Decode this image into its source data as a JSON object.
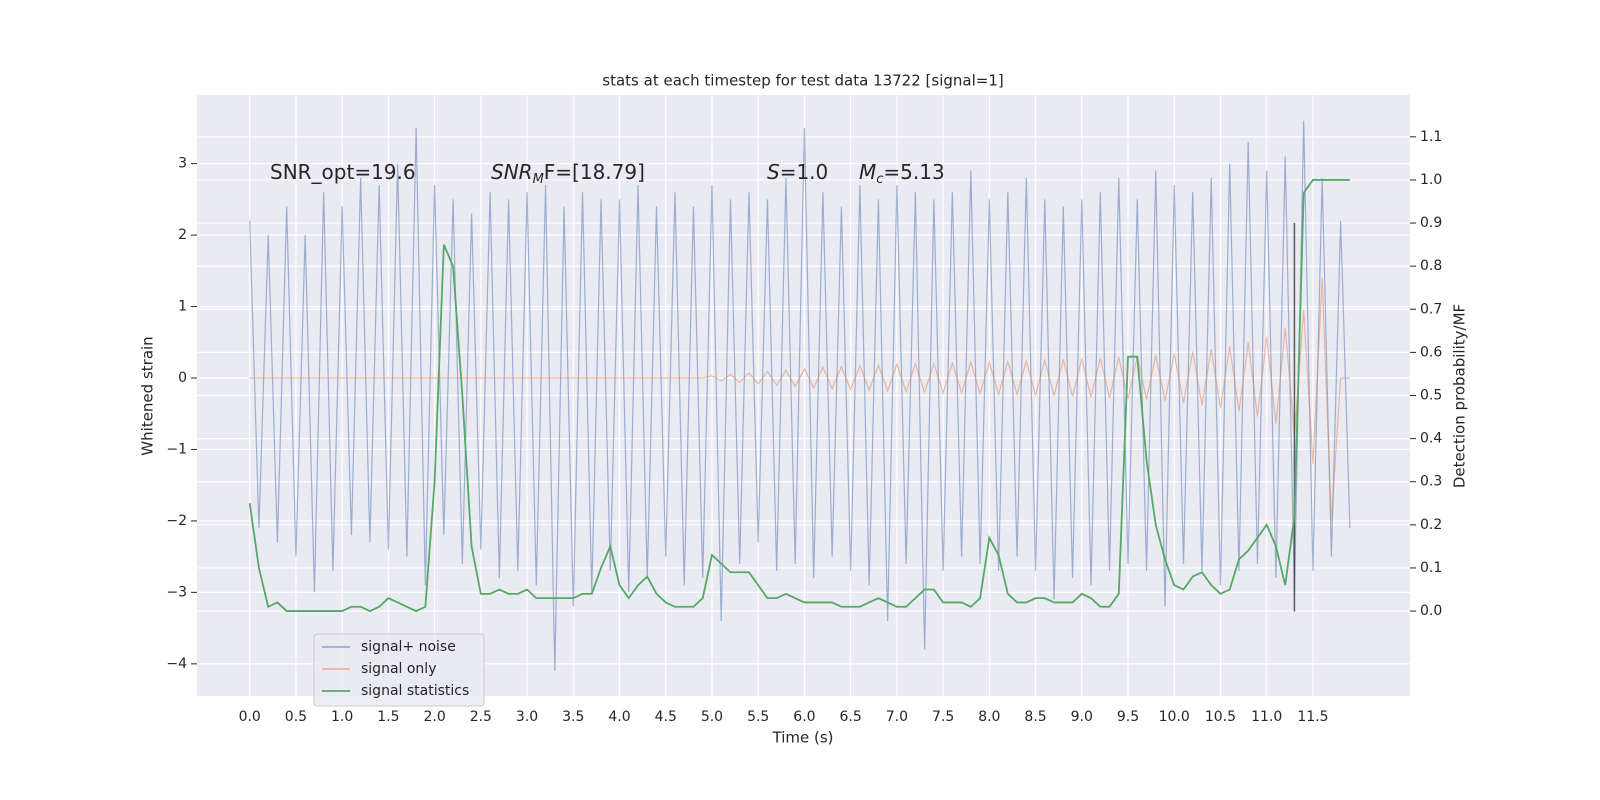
{
  "chart_data": {
    "type": "line",
    "title": "stats at each timestep for test data 13722 [signal=1]",
    "xlabel": "Time (s)",
    "ylabel": "Whitened strain",
    "y2label": "Detection probability/MF",
    "annotations": [
      {
        "text": "SNR_opt=19.6"
      },
      {
        "base": "SNR",
        "sub": "M",
        "tail": "F=[18.79]"
      },
      {
        "base": "S",
        "tail": "=1.0"
      },
      {
        "base": "M",
        "sub": "c",
        "tail": "=5.13"
      }
    ],
    "x": [
      0.0,
      0.1,
      0.2,
      0.3,
      0.4,
      0.5,
      0.6,
      0.7,
      0.8,
      0.9,
      1.0,
      1.1,
      1.2,
      1.3,
      1.4,
      1.5,
      1.6,
      1.7,
      1.8,
      1.9,
      2.0,
      2.1,
      2.2,
      2.3,
      2.4,
      2.5,
      2.6,
      2.7,
      2.8,
      2.9,
      3.0,
      3.1,
      3.2,
      3.3,
      3.4,
      3.5,
      3.6,
      3.7,
      3.8,
      3.9,
      4.0,
      4.1,
      4.2,
      4.3,
      4.4,
      4.5,
      4.6,
      4.7,
      4.8,
      4.9,
      5.0,
      5.1,
      5.2,
      5.3,
      5.4,
      5.5,
      5.6,
      5.7,
      5.8,
      5.9,
      6.0,
      6.1,
      6.2,
      6.3,
      6.4,
      6.5,
      6.6,
      6.7,
      6.8,
      6.9,
      7.0,
      7.1,
      7.2,
      7.3,
      7.4,
      7.5,
      7.6,
      7.7,
      7.8,
      7.9,
      8.0,
      8.1,
      8.2,
      8.3,
      8.4,
      8.5,
      8.6,
      8.7,
      8.8,
      8.9,
      9.0,
      9.1,
      9.2,
      9.3,
      9.4,
      9.5,
      9.6,
      9.7,
      9.8,
      9.9,
      10.0,
      10.1,
      10.2,
      10.3,
      10.4,
      10.5,
      10.6,
      10.7,
      10.8,
      10.9,
      11.0,
      11.1,
      11.2,
      11.3,
      11.4,
      11.5,
      11.6,
      11.7,
      11.8,
      11.9
    ],
    "series": [
      {
        "name": "signal+ noise",
        "color": "#4c72b0",
        "values": [
          2.2,
          -2.1,
          2.0,
          -2.3,
          2.4,
          -2.5,
          2.0,
          -3.0,
          2.6,
          -2.7,
          2.4,
          -2.2,
          2.8,
          -2.3,
          2.7,
          -2.4,
          3.0,
          -2.5,
          3.5,
          -2.9,
          2.7,
          -2.2,
          2.5,
          -2.6,
          2.3,
          -2.4,
          2.6,
          -2.8,
          2.5,
          -2.7,
          2.6,
          -2.9,
          2.7,
          -4.1,
          2.4,
          -3.2,
          2.6,
          -3.0,
          2.5,
          -2.7,
          2.5,
          -3.0,
          2.7,
          -2.8,
          2.4,
          -2.5,
          2.6,
          -2.9,
          2.4,
          -2.8,
          2.7,
          -3.4,
          2.5,
          -2.6,
          2.6,
          -2.3,
          2.5,
          -2.7,
          2.8,
          -2.6,
          3.5,
          -2.8,
          2.6,
          -2.5,
          2.4,
          -2.7,
          2.7,
          -2.9,
          2.5,
          -3.4,
          2.7,
          -2.6,
          2.6,
          -3.8,
          2.5,
          -2.7,
          2.6,
          -2.5,
          2.9,
          -2.6,
          2.5,
          -2.7,
          2.6,
          -2.5,
          2.8,
          -2.7,
          2.5,
          -3.1,
          2.4,
          -2.8,
          2.5,
          -2.9,
          2.6,
          -2.7,
          2.8,
          -2.6,
          2.5,
          -2.7,
          2.9,
          -3.2,
          2.7,
          -2.6,
          2.6,
          -2.7,
          2.8,
          -2.9,
          3.0,
          -2.7,
          3.3,
          -2.6,
          2.9,
          -2.8,
          3.1,
          -3.0,
          3.6,
          -2.7,
          2.8,
          -2.5,
          2.2,
          -2.1
        ]
      },
      {
        "name": "signal only",
        "color": "#dd8452",
        "values": [
          0,
          0,
          0,
          0,
          0,
          0,
          0,
          0,
          0,
          0,
          0,
          0,
          0,
          0,
          0,
          0,
          0,
          0,
          0,
          0,
          0,
          0,
          0,
          0,
          0,
          0,
          0,
          0,
          0,
          0,
          0,
          0,
          0,
          0,
          0,
          0,
          0,
          0,
          0,
          0,
          0,
          0,
          0,
          0,
          0,
          0,
          0,
          0,
          0,
          0,
          0.03,
          -0.04,
          0.05,
          -0.06,
          0.07,
          -0.08,
          0.09,
          -0.1,
          0.11,
          -0.12,
          0.13,
          -0.14,
          0.15,
          -0.15,
          0.16,
          -0.16,
          0.17,
          -0.17,
          0.18,
          -0.18,
          0.19,
          -0.19,
          0.2,
          -0.2,
          0.2,
          -0.21,
          0.21,
          -0.21,
          0.22,
          -0.22,
          0.22,
          -0.23,
          0.23,
          -0.23,
          0.24,
          -0.24,
          0.25,
          -0.25,
          0.26,
          -0.26,
          0.27,
          -0.27,
          0.28,
          -0.28,
          0.29,
          -0.29,
          0.3,
          -0.3,
          0.32,
          -0.32,
          0.34,
          -0.35,
          0.37,
          -0.38,
          0.4,
          -0.42,
          0.44,
          -0.47,
          0.5,
          -0.54,
          0.58,
          -0.64,
          0.7,
          -0.8,
          0.95,
          -1.2,
          1.4,
          -2.0,
          0,
          0
        ]
      },
      {
        "name": "signal statistics",
        "color": "#55a868",
        "axis": "y2",
        "values": [
          0.25,
          0.1,
          0.01,
          0.02,
          0.0,
          0.0,
          0.0,
          0.0,
          0.0,
          0.0,
          0.0,
          0.01,
          0.01,
          0.0,
          0.01,
          0.03,
          0.02,
          0.01,
          0.0,
          0.01,
          0.3,
          0.85,
          0.8,
          0.5,
          0.15,
          0.04,
          0.04,
          0.05,
          0.04,
          0.04,
          0.05,
          0.03,
          0.03,
          0.03,
          0.03,
          0.03,
          0.04,
          0.04,
          0.1,
          0.15,
          0.06,
          0.03,
          0.06,
          0.08,
          0.04,
          0.02,
          0.01,
          0.01,
          0.01,
          0.03,
          0.13,
          0.11,
          0.09,
          0.09,
          0.09,
          0.06,
          0.03,
          0.03,
          0.04,
          0.03,
          0.02,
          0.02,
          0.02,
          0.02,
          0.01,
          0.01,
          0.01,
          0.02,
          0.03,
          0.02,
          0.01,
          0.01,
          0.03,
          0.05,
          0.05,
          0.02,
          0.02,
          0.02,
          0.01,
          0.03,
          0.17,
          0.13,
          0.04,
          0.02,
          0.02,
          0.03,
          0.03,
          0.02,
          0.02,
          0.02,
          0.04,
          0.03,
          0.01,
          0.01,
          0.04,
          0.59,
          0.59,
          0.35,
          0.2,
          0.12,
          0.06,
          0.05,
          0.08,
          0.09,
          0.06,
          0.04,
          0.05,
          0.12,
          0.14,
          0.17,
          0.2,
          0.15,
          0.06,
          0.22,
          0.97,
          1.0,
          1.0,
          1.0,
          1.0,
          1.0
        ]
      }
    ],
    "vline": 11.3,
    "vline_color": "#333333",
    "xlim": [
      -0.57,
      12.55
    ],
    "ylim": [
      -4.45,
      3.96
    ],
    "y2lim": [
      -0.197,
      1.197
    ],
    "xticks": [
      {
        "value": 0,
        "label": "0.0"
      },
      {
        "value": 0.5,
        "label": "0.5"
      },
      {
        "value": 1,
        "label": "1.0"
      },
      {
        "value": 1.5,
        "label": "1.5"
      },
      {
        "value": 2,
        "label": "2.0"
      },
      {
        "value": 2.5,
        "label": "2.5"
      },
      {
        "value": 3,
        "label": "3.0"
      },
      {
        "value": 3.5,
        "label": "3.5"
      },
      {
        "value": 4,
        "label": "4.0"
      },
      {
        "value": 4.5,
        "label": "4.5"
      },
      {
        "value": 5,
        "label": "5.0"
      },
      {
        "value": 5.5,
        "label": "5.5"
      },
      {
        "value": 6,
        "label": "6.0"
      },
      {
        "value": 6.5,
        "label": "6.5"
      },
      {
        "value": 7,
        "label": "7.0"
      },
      {
        "value": 7.5,
        "label": "7.5"
      },
      {
        "value": 8,
        "label": "8.0"
      },
      {
        "value": 8.5,
        "label": "8.5"
      },
      {
        "value": 9,
        "label": "9.0"
      },
      {
        "value": 9.5,
        "label": "9.5"
      },
      {
        "value": 10,
        "label": "10.0"
      },
      {
        "value": 10.5,
        "label": "10.5"
      },
      {
        "value": 11,
        "label": "11.0"
      },
      {
        "value": 11.5,
        "label": "11.5"
      }
    ],
    "yticks": [
      {
        "value": -4,
        "label": "−4"
      },
      {
        "value": -3,
        "label": "−3"
      },
      {
        "value": -2,
        "label": "−2"
      },
      {
        "value": -1,
        "label": "−1"
      },
      0,
      1,
      2,
      3
    ],
    "y2ticks": [
      {
        "value": 0,
        "label": "0.0"
      },
      {
        "value": 0.1,
        "label": "0.1"
      },
      {
        "value": 0.2,
        "label": "0.2"
      },
      {
        "value": 0.3,
        "label": "0.3"
      },
      {
        "value": 0.4,
        "label": "0.4"
      },
      {
        "value": 0.5,
        "label": "0.5"
      },
      {
        "value": 0.6,
        "label": "0.6"
      },
      {
        "value": 0.7,
        "label": "0.7"
      },
      {
        "value": 0.8,
        "label": "0.8"
      },
      {
        "value": 0.9,
        "label": "0.9"
      },
      {
        "value": 1,
        "label": "1.0"
      },
      {
        "value": 1.1,
        "label": "1.1"
      }
    ],
    "grid": true,
    "legend": "lower left"
  }
}
